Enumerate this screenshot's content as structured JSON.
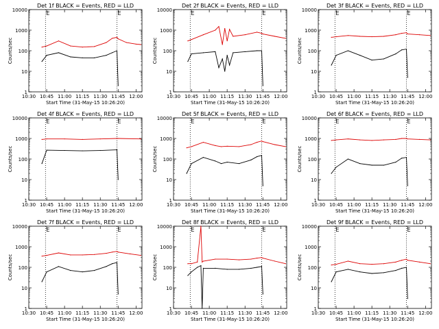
{
  "figure": {
    "panel_titles": [
      "Det 1f BLACK = Events, RED = LLD",
      "Det 2f BLACK = Events, RED = LLD",
      "Det 3f BLACK = Events, RED = LLD",
      "Det 4f BLACK = Events, RED = LLD",
      "Det 5f BLACK = Events, RED = LLD",
      "Det 6f BLACK = Events, RED = LLD",
      "Det 7f BLACK = Events, RED = LLD",
      "Det 8f BLACK = Events, RED = LLD",
      "Det 9f BLACK = Events, RED = LLD"
    ],
    "xlabel": "Start Time (31-May-15 10:26:20)",
    "ylabel": "Counts/sec",
    "x_tick_labels": [
      "10:30",
      "10:45",
      "11:00",
      "11:15",
      "11:30",
      "11:45",
      "12:00"
    ],
    "y_tick_labels": [
      "1",
      "10",
      "100",
      "1000",
      "10000"
    ],
    "marker_labels": [
      "E",
      "E"
    ],
    "colors": {
      "events": "#000000",
      "lld": "#dd0000",
      "axes": "#000000",
      "background": "#ffffff"
    }
  },
  "chart_data": [
    {
      "type": "line",
      "title": "Det 1f BLACK = Events, RED = LLD",
      "xlabel": "Start Time (31-May-15 10:26:20)",
      "ylabel": "Counts/sec",
      "xlim": [
        "10:30",
        "12:05"
      ],
      "ylim": [
        1,
        10000
      ],
      "yscale": "log",
      "markers_x": [
        "10:44",
        "11:44"
      ],
      "x": [
        "10:41",
        "10:45",
        "10:55",
        "11:05",
        "11:15",
        "11:25",
        "11:35",
        "11:40",
        "11:44",
        "11:45",
        "11:52",
        "12:00",
        "12:04"
      ],
      "series": [
        {
          "name": "BLACK = Events",
          "values": [
            30,
            60,
            80,
            50,
            45,
            45,
            60,
            80,
            100,
            2,
            null,
            null,
            null
          ]
        },
        {
          "name": "RED = LLD",
          "values": [
            150,
            170,
            300,
            170,
            150,
            160,
            250,
            400,
            450,
            380,
            250,
            210,
            200
          ]
        }
      ]
    },
    {
      "type": "line",
      "title": "Det 2f BLACK = Events, RED = LLD",
      "xlabel": "Start Time (31-May-15 10:26:20)",
      "ylabel": "Counts/sec",
      "xlim": [
        "10:30",
        "12:05"
      ],
      "ylim": [
        1,
        10000
      ],
      "yscale": "log",
      "markers_x": [
        "10:44",
        "11:44"
      ],
      "x": [
        "10:42",
        "10:45",
        "10:55",
        "11:05",
        "11:08",
        "11:11",
        "11:13",
        "11:15",
        "11:17",
        "11:20",
        "11:30",
        "11:40",
        "11:44",
        "11:45",
        "11:55",
        "12:04"
      ],
      "series": [
        {
          "name": "BLACK = Events",
          "values": [
            30,
            70,
            80,
            90,
            15,
            40,
            10,
            60,
            20,
            80,
            90,
            100,
            100,
            2,
            null,
            null
          ]
        },
        {
          "name": "RED = LLD",
          "values": [
            300,
            350,
            600,
            1000,
            1500,
            200,
            1200,
            300,
            1100,
            500,
            600,
            800,
            700,
            650,
            500,
            400
          ]
        }
      ]
    },
    {
      "type": "line",
      "title": "Det 3f BLACK = Events, RED = LLD",
      "xlabel": "Start Time (31-May-15 10:26:20)",
      "ylabel": "Counts/sec",
      "xlim": [
        "10:30",
        "12:05"
      ],
      "ylim": [
        1,
        10000
      ],
      "yscale": "log",
      "markers_x": [
        "10:44",
        "11:44"
      ],
      "x": [
        "10:41",
        "10:45",
        "10:55",
        "11:05",
        "11:15",
        "11:25",
        "11:35",
        "11:40",
        "11:44",
        "11:45",
        "11:55",
        "12:04"
      ],
      "series": [
        {
          "name": "BLACK = Events",
          "values": [
            20,
            60,
            100,
            60,
            35,
            40,
            70,
            110,
            120,
            5,
            null,
            null
          ]
        },
        {
          "name": "RED = LLD",
          "values": [
            450,
            480,
            550,
            500,
            480,
            500,
            600,
            700,
            750,
            650,
            600,
            550
          ]
        }
      ]
    },
    {
      "type": "line",
      "title": "Det 4f BLACK = Events, RED = LLD",
      "xlabel": "Start Time (31-May-15 10:26:20)",
      "ylabel": "Counts/sec",
      "xlim": [
        "10:30",
        "12:05"
      ],
      "ylim": [
        1,
        10000
      ],
      "yscale": "log",
      "markers_x": [
        "10:44",
        "11:44"
      ],
      "x": [
        "10:41",
        "10:45",
        "11:00",
        "11:15",
        "11:30",
        "11:44",
        "11:45",
        "12:04"
      ],
      "series": [
        {
          "name": "BLACK = Events",
          "values": [
            60,
            270,
            260,
            250,
            260,
            280,
            10,
            null
          ]
        },
        {
          "name": "RED = LLD",
          "values": [
            900,
            950,
            950,
            900,
            950,
            1000,
            1000,
            950
          ]
        }
      ]
    },
    {
      "type": "line",
      "title": "Det 5f BLACK = Events, RED = LLD",
      "xlabel": "Start Time (31-May-15 10:26:20)",
      "ylabel": "Counts/sec",
      "xlim": [
        "10:30",
        "12:05"
      ],
      "ylim": [
        1,
        10000
      ],
      "yscale": "log",
      "markers_x": [
        "10:44",
        "11:44"
      ],
      "x": [
        "10:41",
        "10:45",
        "10:55",
        "11:05",
        "11:10",
        "11:15",
        "11:25",
        "11:35",
        "11:40",
        "11:44",
        "11:45",
        "11:55",
        "12:04"
      ],
      "series": [
        {
          "name": "BLACK = Events",
          "values": [
            20,
            60,
            120,
            80,
            60,
            70,
            60,
            90,
            130,
            150,
            5,
            null,
            null
          ]
        },
        {
          "name": "RED = LLD",
          "values": [
            350,
            400,
            650,
            450,
            400,
            420,
            400,
            500,
            650,
            750,
            700,
            500,
            400
          ]
        }
      ]
    },
    {
      "type": "line",
      "title": "Det 6f BLACK = Events, RED = LLD",
      "xlabel": "Start Time (31-May-15 10:26:20)",
      "ylabel": "Counts/sec",
      "xlim": [
        "10:30",
        "12:05"
      ],
      "ylim": [
        1,
        10000
      ],
      "yscale": "log",
      "markers_x": [
        "10:44",
        "11:44"
      ],
      "x": [
        "10:41",
        "10:45",
        "10:55",
        "11:05",
        "11:15",
        "11:25",
        "11:35",
        "11:40",
        "11:44",
        "11:45",
        "11:55",
        "12:04"
      ],
      "series": [
        {
          "name": "BLACK = Events",
          "values": [
            20,
            40,
            100,
            60,
            50,
            50,
            70,
            110,
            120,
            5,
            null,
            null
          ]
        },
        {
          "name": "RED = LLD",
          "values": [
            800,
            850,
            950,
            850,
            800,
            850,
            900,
            1000,
            1000,
            950,
            900,
            850
          ]
        }
      ]
    },
    {
      "type": "line",
      "title": "Det 7f BLACK = Events, RED = LLD",
      "xlabel": "Start Time (31-May-15 10:26:20)",
      "ylabel": "Counts/sec",
      "xlim": [
        "10:30",
        "12:05"
      ],
      "ylim": [
        1,
        10000
      ],
      "yscale": "log",
      "markers_x": [
        "10:44",
        "11:44"
      ],
      "x": [
        "10:41",
        "10:45",
        "10:55",
        "11:05",
        "11:15",
        "11:25",
        "11:35",
        "11:40",
        "11:44",
        "11:45",
        "11:55",
        "12:04"
      ],
      "series": [
        {
          "name": "BLACK = Events",
          "values": [
            20,
            60,
            110,
            70,
            60,
            70,
            110,
            150,
            170,
            5,
            null,
            null
          ]
        },
        {
          "name": "RED = LLD",
          "values": [
            350,
            380,
            500,
            400,
            400,
            420,
            480,
            550,
            600,
            550,
            450,
            380
          ]
        }
      ]
    },
    {
      "type": "line",
      "title": "Det 8f BLACK = Events, RED = LLD",
      "xlabel": "Start Time (31-May-15 10:26:20)",
      "ylabel": "Counts/sec",
      "xlim": [
        "10:30",
        "12:05"
      ],
      "ylim": [
        1,
        10000
      ],
      "yscale": "log",
      "markers_x": [
        "10:44",
        "11:44"
      ],
      "x": [
        "10:42",
        "10:45",
        "10:50",
        "10:53",
        "10:54",
        "10:55",
        "11:05",
        "11:15",
        "11:25",
        "11:35",
        "11:40",
        "11:44",
        "11:45",
        "11:55",
        "12:04"
      ],
      "series": [
        {
          "name": "BLACK = Events",
          "values": [
            40,
            60,
            100,
            120,
            1,
            90,
            90,
            80,
            80,
            90,
            100,
            110,
            5,
            null,
            null
          ]
        },
        {
          "name": "RED = LLD",
          "values": [
            150,
            150,
            180,
            10000,
            180,
            200,
            250,
            250,
            230,
            250,
            280,
            300,
            280,
            200,
            150
          ]
        }
      ]
    },
    {
      "type": "line",
      "title": "Det 9f BLACK = Events, RED = LLD",
      "xlabel": "Start Time (31-May-15 10:26:20)",
      "ylabel": "Counts/sec",
      "xlim": [
        "10:30",
        "12:05"
      ],
      "ylim": [
        1,
        10000
      ],
      "yscale": "log",
      "markers_x": [
        "10:44",
        "11:44"
      ],
      "x": [
        "10:41",
        "10:45",
        "10:55",
        "11:05",
        "11:15",
        "11:25",
        "11:35",
        "11:40",
        "11:44",
        "11:45",
        "11:55",
        "12:04"
      ],
      "series": [
        {
          "name": "BLACK = Events",
          "values": [
            20,
            60,
            80,
            60,
            50,
            55,
            70,
            90,
            100,
            3,
            null,
            null
          ]
        },
        {
          "name": "RED = LLD",
          "values": [
            130,
            140,
            200,
            150,
            140,
            150,
            180,
            220,
            250,
            220,
            180,
            150
          ]
        }
      ]
    }
  ]
}
